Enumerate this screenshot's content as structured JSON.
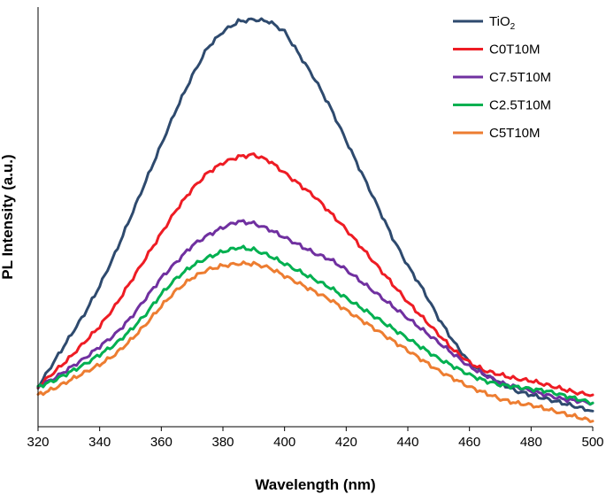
{
  "chart_data": {
    "type": "line",
    "title": "",
    "xlabel": "Wavelength (nm)",
    "ylabel": "PL Intensity (a.u.)",
    "xlim": [
      320,
      500
    ],
    "ylim": [
      0,
      100
    ],
    "xticks": [
      320,
      340,
      360,
      380,
      400,
      420,
      440,
      460,
      480,
      500
    ],
    "xtick_labels": [
      "320",
      "340",
      "360",
      "380",
      "400",
      "420",
      "440",
      "460",
      "480",
      "500"
    ],
    "y_ticks_shown": false,
    "grid": false,
    "legend_position": "top-right",
    "x": [
      320,
      325,
      330,
      335,
      340,
      345,
      350,
      355,
      360,
      365,
      370,
      375,
      380,
      385,
      390,
      395,
      400,
      405,
      410,
      415,
      420,
      425,
      430,
      435,
      440,
      445,
      450,
      455,
      460,
      465,
      470,
      475,
      480,
      485,
      490,
      495,
      500
    ],
    "series": [
      {
        "name": "TiO",
        "subscript": "2",
        "color": "#2e4a6e",
        "values": [
          9,
          15,
          21,
          27,
          34,
          42,
          51,
          60,
          69,
          78,
          86,
          93,
          97,
          99.5,
          100,
          99.5,
          97,
          91,
          85,
          78,
          70,
          62,
          54,
          46,
          39,
          33,
          26,
          20,
          15,
          12,
          10,
          8,
          7,
          6,
          5,
          4,
          3
        ]
      },
      {
        "name": "C0T10M",
        "color": "#ee1c24",
        "values": [
          9,
          12.5,
          16,
          20,
          24,
          29,
          35,
          41,
          47,
          53,
          58,
          62,
          64.5,
          66,
          66.5,
          65,
          62,
          59,
          56,
          52,
          48,
          43.5,
          39,
          34.5,
          30,
          26,
          22,
          18,
          15,
          13,
          12,
          11,
          10.5,
          9.5,
          8.5,
          7.5,
          7
        ]
      },
      {
        "name": "C7.5T10M",
        "color": "#7030a0",
        "values": [
          9,
          11,
          13.5,
          16,
          19,
          22,
          26,
          31,
          36,
          40,
          44,
          46.5,
          48.5,
          50,
          49.5,
          48,
          46,
          44,
          42,
          40.5,
          38,
          35,
          32,
          29,
          26,
          23,
          20,
          17,
          14,
          12,
          10,
          9,
          8,
          7,
          6,
          5.5,
          5
        ]
      },
      {
        "name": "C2.5T10M",
        "color": "#00b050",
        "values": [
          9,
          10.5,
          12.5,
          14.5,
          17,
          19.5,
          23,
          27,
          32,
          36,
          39,
          41,
          42.5,
          43.5,
          43,
          41.5,
          39.5,
          37.5,
          35.5,
          33.5,
          31,
          28.5,
          26,
          23.5,
          21,
          18.5,
          16,
          14,
          12,
          10.5,
          9.5,
          9,
          8.5,
          8,
          7,
          6,
          5
        ]
      },
      {
        "name": "C5T10M",
        "color": "#ed7d31",
        "values": [
          7,
          8.5,
          10.5,
          12.5,
          14.5,
          17,
          20.5,
          24.5,
          29,
          33,
          36,
          38,
          39,
          39.5,
          39.5,
          38.5,
          36.5,
          34.5,
          32.5,
          30.5,
          28,
          25.5,
          23,
          20.5,
          18,
          15.5,
          13,
          11,
          9,
          7.5,
          6,
          5,
          4.5,
          3.5,
          2.5,
          1.5,
          0.5
        ]
      }
    ]
  }
}
